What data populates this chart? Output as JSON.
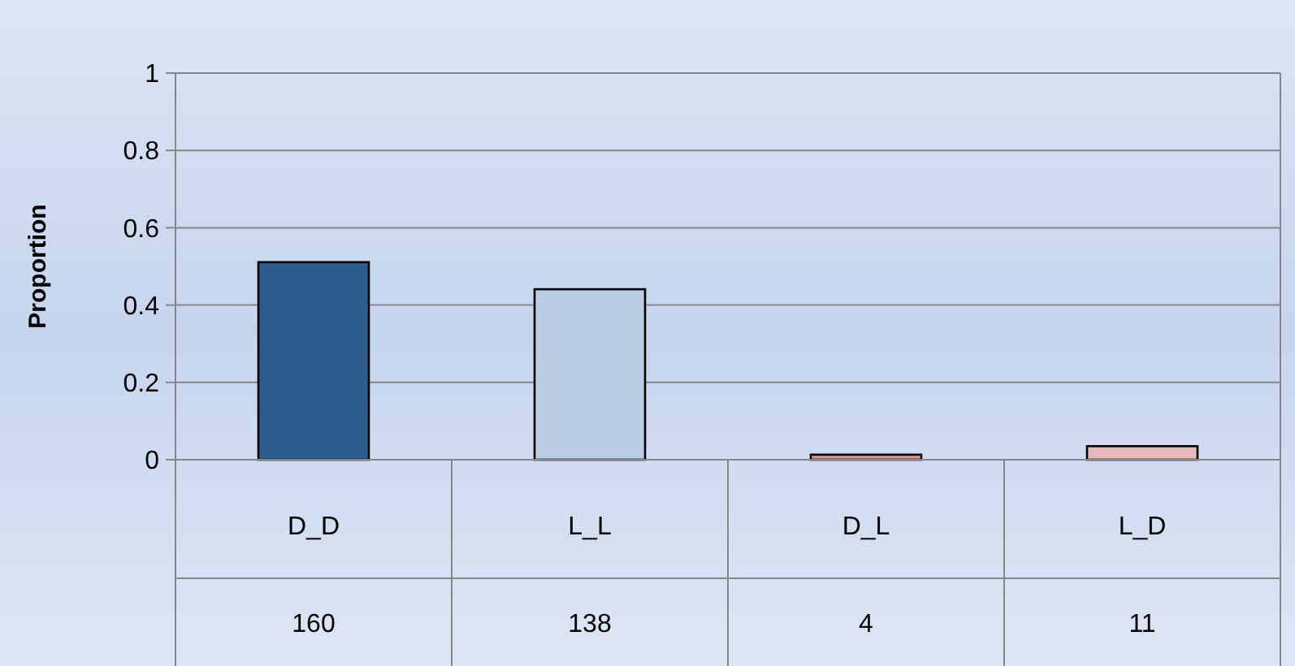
{
  "chart_data": {
    "type": "bar",
    "ylabel": "Proportion",
    "categories": [
      "D_D",
      "L_L",
      "D_L",
      "L_D"
    ],
    "values": [
      0.511,
      0.441,
      0.013,
      0.035
    ],
    "colors": [
      "#2f5c8f",
      "#b9cde5",
      "#d99694",
      "#e6b9b8"
    ],
    "ylim": [
      0,
      1
    ],
    "yticks": [
      0,
      0.2,
      0.4,
      0.6,
      0.8,
      1
    ],
    "grid": "y",
    "annotations": [
      "160",
      "138",
      "4",
      "11"
    ]
  }
}
